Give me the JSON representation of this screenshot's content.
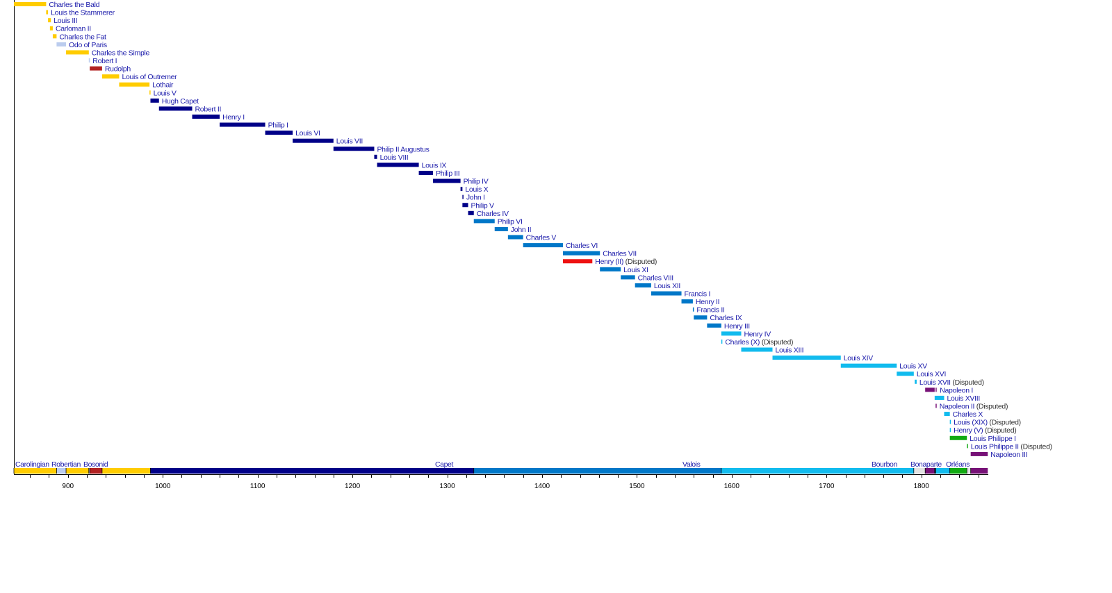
{
  "chart_data": {
    "type": "timeline",
    "title": "",
    "xlabel": "",
    "ylabel": "",
    "xlim": [
      843,
      1870
    ],
    "x_ticks": [
      900,
      1000,
      1100,
      1200,
      1300,
      1400,
      1500,
      1600,
      1700,
      1800
    ],
    "minor_tick_step": 20,
    "disputed_label": "(Disputed)",
    "dynasty_colors": {
      "Carolingian": "#FFCC00",
      "Robertian": "#BBCCEE",
      "Bosonid": "#B22222",
      "Capet": "#000088",
      "Valois": "#0077C8",
      "Bourbon": "#11BBEE",
      "Bonaparte": "#771177",
      "Orléans": "#11AA11",
      "Lancaster": "#EE1111",
      "none": "#E2E2E2"
    },
    "label_color": "#1A1AAA",
    "disputed_color": "#333333",
    "monarchs": [
      {
        "name": "Charles the Bald",
        "start": 843,
        "end": 877,
        "dynasty": "Carolingian"
      },
      {
        "name": "Louis the Stammerer",
        "start": 877,
        "end": 879,
        "dynasty": "Carolingian"
      },
      {
        "name": "Louis III",
        "start": 879,
        "end": 882,
        "dynasty": "Carolingian"
      },
      {
        "name": "Carloman II",
        "start": 881,
        "end": 884,
        "dynasty": "Carolingian"
      },
      {
        "name": "Charles the Fat",
        "start": 884,
        "end": 888,
        "dynasty": "Carolingian"
      },
      {
        "name": "Odo of Paris",
        "start": 888,
        "end": 898,
        "dynasty": "Robertian"
      },
      {
        "name": "Charles the Simple",
        "start": 898,
        "end": 922,
        "dynasty": "Carolingian"
      },
      {
        "name": "Robert I",
        "start": 922,
        "end": 923,
        "dynasty": "Robertian"
      },
      {
        "name": "Rudolph",
        "start": 923,
        "end": 936,
        "dynasty": "Bosonid"
      },
      {
        "name": "Louis of Outremer",
        "start": 936,
        "end": 954,
        "dynasty": "Carolingian"
      },
      {
        "name": "Lothair",
        "start": 954,
        "end": 986,
        "dynasty": "Carolingian"
      },
      {
        "name": "Louis V",
        "start": 986,
        "end": 987,
        "dynasty": "Carolingian"
      },
      {
        "name": "Hugh Capet",
        "start": 987,
        "end": 996,
        "dynasty": "Capet"
      },
      {
        "name": "Robert II",
        "start": 996,
        "end": 1031,
        "dynasty": "Capet"
      },
      {
        "name": "Henry I",
        "start": 1031,
        "end": 1060,
        "dynasty": "Capet"
      },
      {
        "name": "Philip I",
        "start": 1060,
        "end": 1108,
        "dynasty": "Capet"
      },
      {
        "name": "Louis VI",
        "start": 1108,
        "end": 1137,
        "dynasty": "Capet"
      },
      {
        "name": "Louis VII",
        "start": 1137,
        "end": 1180,
        "dynasty": "Capet"
      },
      {
        "name": "Philip II Augustus",
        "start": 1180,
        "end": 1223,
        "dynasty": "Capet"
      },
      {
        "name": "Louis VIII",
        "start": 1223,
        "end": 1226,
        "dynasty": "Capet"
      },
      {
        "name": "Louis IX",
        "start": 1226,
        "end": 1270,
        "dynasty": "Capet"
      },
      {
        "name": "Philip III",
        "start": 1270,
        "end": 1285,
        "dynasty": "Capet"
      },
      {
        "name": "Philip IV",
        "start": 1285,
        "end": 1314,
        "dynasty": "Capet"
      },
      {
        "name": "Louis X",
        "start": 1314,
        "end": 1316,
        "dynasty": "Capet"
      },
      {
        "name": "John I",
        "start": 1316,
        "end": 1316.5,
        "dynasty": "Capet"
      },
      {
        "name": "Philip V",
        "start": 1316,
        "end": 1322,
        "dynasty": "Capet"
      },
      {
        "name": "Charles IV",
        "start": 1322,
        "end": 1328,
        "dynasty": "Capet"
      },
      {
        "name": "Philip VI",
        "start": 1328,
        "end": 1350,
        "dynasty": "Valois"
      },
      {
        "name": "John II",
        "start": 1350,
        "end": 1364,
        "dynasty": "Valois"
      },
      {
        "name": "Charles V",
        "start": 1364,
        "end": 1380,
        "dynasty": "Valois"
      },
      {
        "name": "Charles VI",
        "start": 1380,
        "end": 1422,
        "dynasty": "Valois"
      },
      {
        "name": "Charles VII",
        "start": 1422,
        "end": 1461,
        "dynasty": "Valois"
      },
      {
        "name": "Henry (II)",
        "start": 1422,
        "end": 1453,
        "dynasty": "Lancaster",
        "disputed": true
      },
      {
        "name": "Louis XI",
        "start": 1461,
        "end": 1483,
        "dynasty": "Valois"
      },
      {
        "name": "Charles VIII",
        "start": 1483,
        "end": 1498,
        "dynasty": "Valois"
      },
      {
        "name": "Louis XII",
        "start": 1498,
        "end": 1515,
        "dynasty": "Valois"
      },
      {
        "name": "Francis I",
        "start": 1515,
        "end": 1547,
        "dynasty": "Valois"
      },
      {
        "name": "Henry II",
        "start": 1547,
        "end": 1559,
        "dynasty": "Valois"
      },
      {
        "name": "Francis II",
        "start": 1559,
        "end": 1560,
        "dynasty": "Valois"
      },
      {
        "name": "Charles IX",
        "start": 1560,
        "end": 1574,
        "dynasty": "Valois"
      },
      {
        "name": "Henry III",
        "start": 1574,
        "end": 1589,
        "dynasty": "Valois"
      },
      {
        "name": "Henry IV",
        "start": 1589,
        "end": 1610,
        "dynasty": "Bourbon"
      },
      {
        "name": "Charles (X)",
        "start": 1589,
        "end": 1590,
        "dynasty": "Bourbon",
        "disputed": true
      },
      {
        "name": "Louis XIII",
        "start": 1610,
        "end": 1643,
        "dynasty": "Bourbon"
      },
      {
        "name": "Louis XIV",
        "start": 1643,
        "end": 1715,
        "dynasty": "Bourbon"
      },
      {
        "name": "Louis XV",
        "start": 1715,
        "end": 1774,
        "dynasty": "Bourbon"
      },
      {
        "name": "Louis XVI",
        "start": 1774,
        "end": 1792,
        "dynasty": "Bourbon"
      },
      {
        "name": "Louis XVII",
        "start": 1793,
        "end": 1795,
        "dynasty": "Bourbon",
        "disputed": true
      },
      {
        "name": "Napoleon I",
        "start": 1804,
        "end": 1814,
        "dynasty": "Bonaparte",
        "extra": [
          1815,
          1815.3
        ]
      },
      {
        "name": "Louis XVIII",
        "start": 1814,
        "end": 1824,
        "dynasty": "Bourbon"
      },
      {
        "name": "Napoleon II",
        "start": 1815,
        "end": 1815.3,
        "dynasty": "Bonaparte",
        "disputed": true
      },
      {
        "name": "Charles X",
        "start": 1824,
        "end": 1830,
        "dynasty": "Bourbon"
      },
      {
        "name": "Louis (XIX)",
        "start": 1830,
        "end": 1830.3,
        "dynasty": "Bourbon",
        "disputed": true
      },
      {
        "name": "Henry (V)",
        "start": 1830,
        "end": 1830.3,
        "dynasty": "Bourbon",
        "disputed": true
      },
      {
        "name": "Louis Philippe I",
        "start": 1830,
        "end": 1848,
        "dynasty": "Orléans"
      },
      {
        "name": "Louis Philippe II",
        "start": 1848,
        "end": 1848.3,
        "dynasty": "Orléans",
        "disputed": true
      },
      {
        "name": "Napoleon III",
        "start": 1852,
        "end": 1870,
        "dynasty": "Bonaparte"
      }
    ],
    "dynasty_segments": [
      {
        "dynasty": "Carolingian",
        "start": 843,
        "end": 888
      },
      {
        "dynasty": "Robertian",
        "start": 888,
        "end": 898
      },
      {
        "dynasty": "Carolingian",
        "start": 898,
        "end": 922
      },
      {
        "dynasty": "Robertian",
        "start": 922,
        "end": 923
      },
      {
        "dynasty": "Bosonid",
        "start": 923,
        "end": 936
      },
      {
        "dynasty": "Carolingian",
        "start": 936,
        "end": 987
      },
      {
        "dynasty": "Capet",
        "start": 987,
        "end": 1328
      },
      {
        "dynasty": "Valois",
        "start": 1328,
        "end": 1589
      },
      {
        "dynasty": "Bourbon",
        "start": 1589,
        "end": 1792
      },
      {
        "dynasty": "none",
        "start": 1792,
        "end": 1804
      },
      {
        "dynasty": "Bonaparte",
        "start": 1804,
        "end": 1814
      },
      {
        "dynasty": "Bourbon",
        "start": 1814,
        "end": 1815
      },
      {
        "dynasty": "Bonaparte",
        "start": 1815,
        "end": 1815.3
      },
      {
        "dynasty": "Bourbon",
        "start": 1815.3,
        "end": 1830
      },
      {
        "dynasty": "Orléans",
        "start": 1830,
        "end": 1848
      },
      {
        "dynasty": "none",
        "start": 1848,
        "end": 1852
      },
      {
        "dynasty": "Bonaparte",
        "start": 1852,
        "end": 1870
      }
    ],
    "dynasty_labels": [
      "Carolingian",
      "Robertian",
      "Bosonid",
      "Capet",
      "Valois",
      "Bourbon",
      "Bonaparte",
      "Orléans"
    ]
  }
}
